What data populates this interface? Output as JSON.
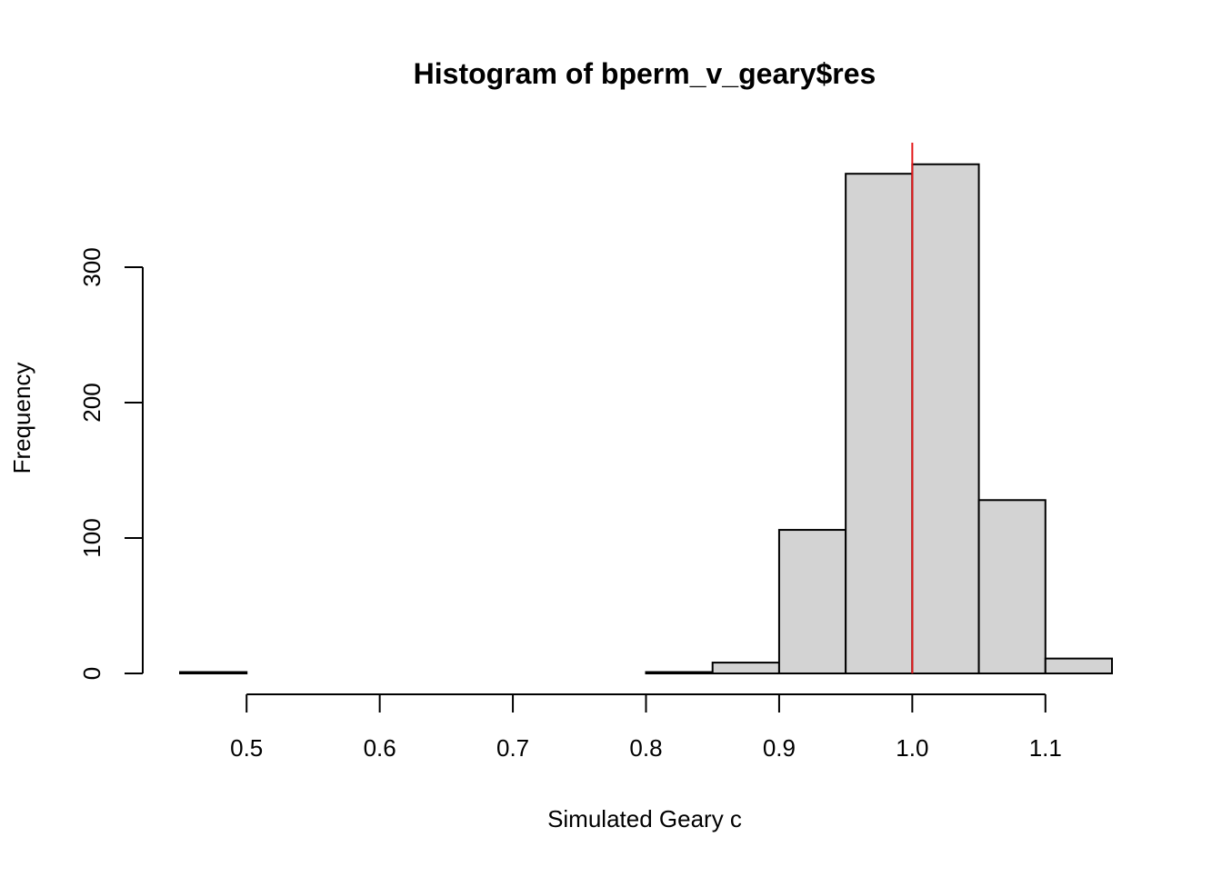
{
  "chart_data": {
    "type": "bar",
    "subtype": "histogram",
    "title": "Histogram of bperm_v_geary$res",
    "xlabel": "Simulated Geary c",
    "ylabel": "Frequency",
    "bins": [
      {
        "x0": 0.45,
        "x1": 0.5,
        "count": 1
      },
      {
        "x0": 0.5,
        "x1": 0.55,
        "count": 0
      },
      {
        "x0": 0.55,
        "x1": 0.6,
        "count": 0
      },
      {
        "x0": 0.6,
        "x1": 0.65,
        "count": 0
      },
      {
        "x0": 0.65,
        "x1": 0.7,
        "count": 0
      },
      {
        "x0": 0.7,
        "x1": 0.75,
        "count": 0
      },
      {
        "x0": 0.75,
        "x1": 0.8,
        "count": 0
      },
      {
        "x0": 0.8,
        "x1": 0.85,
        "count": 1
      },
      {
        "x0": 0.85,
        "x1": 0.9,
        "count": 8
      },
      {
        "x0": 0.9,
        "x1": 0.95,
        "count": 106
      },
      {
        "x0": 0.95,
        "x1": 1.0,
        "count": 369
      },
      {
        "x0": 1.0,
        "x1": 1.05,
        "count": 376
      },
      {
        "x0": 1.05,
        "x1": 1.1,
        "count": 128
      },
      {
        "x0": 1.1,
        "x1": 1.15,
        "count": 11
      }
    ],
    "xlim": [
      0.45,
      1.15
    ],
    "ylim": [
      0,
      400
    ],
    "xticks": [
      0.5,
      0.6,
      0.7,
      0.8,
      0.9,
      1.0,
      1.1
    ],
    "xtick_labels": [
      "0.5",
      "0.6",
      "0.7",
      "0.8",
      "0.9",
      "1.0",
      "1.1"
    ],
    "yticks": [
      0,
      100,
      200,
      300
    ],
    "ytick_labels": [
      "0",
      "100",
      "200",
      "300"
    ],
    "reference_line": {
      "x": 1.0,
      "color": "#e31a1c"
    },
    "bar_fill": "#d3d3d3",
    "bar_stroke": "#000000",
    "grid": false,
    "legend": "none"
  }
}
